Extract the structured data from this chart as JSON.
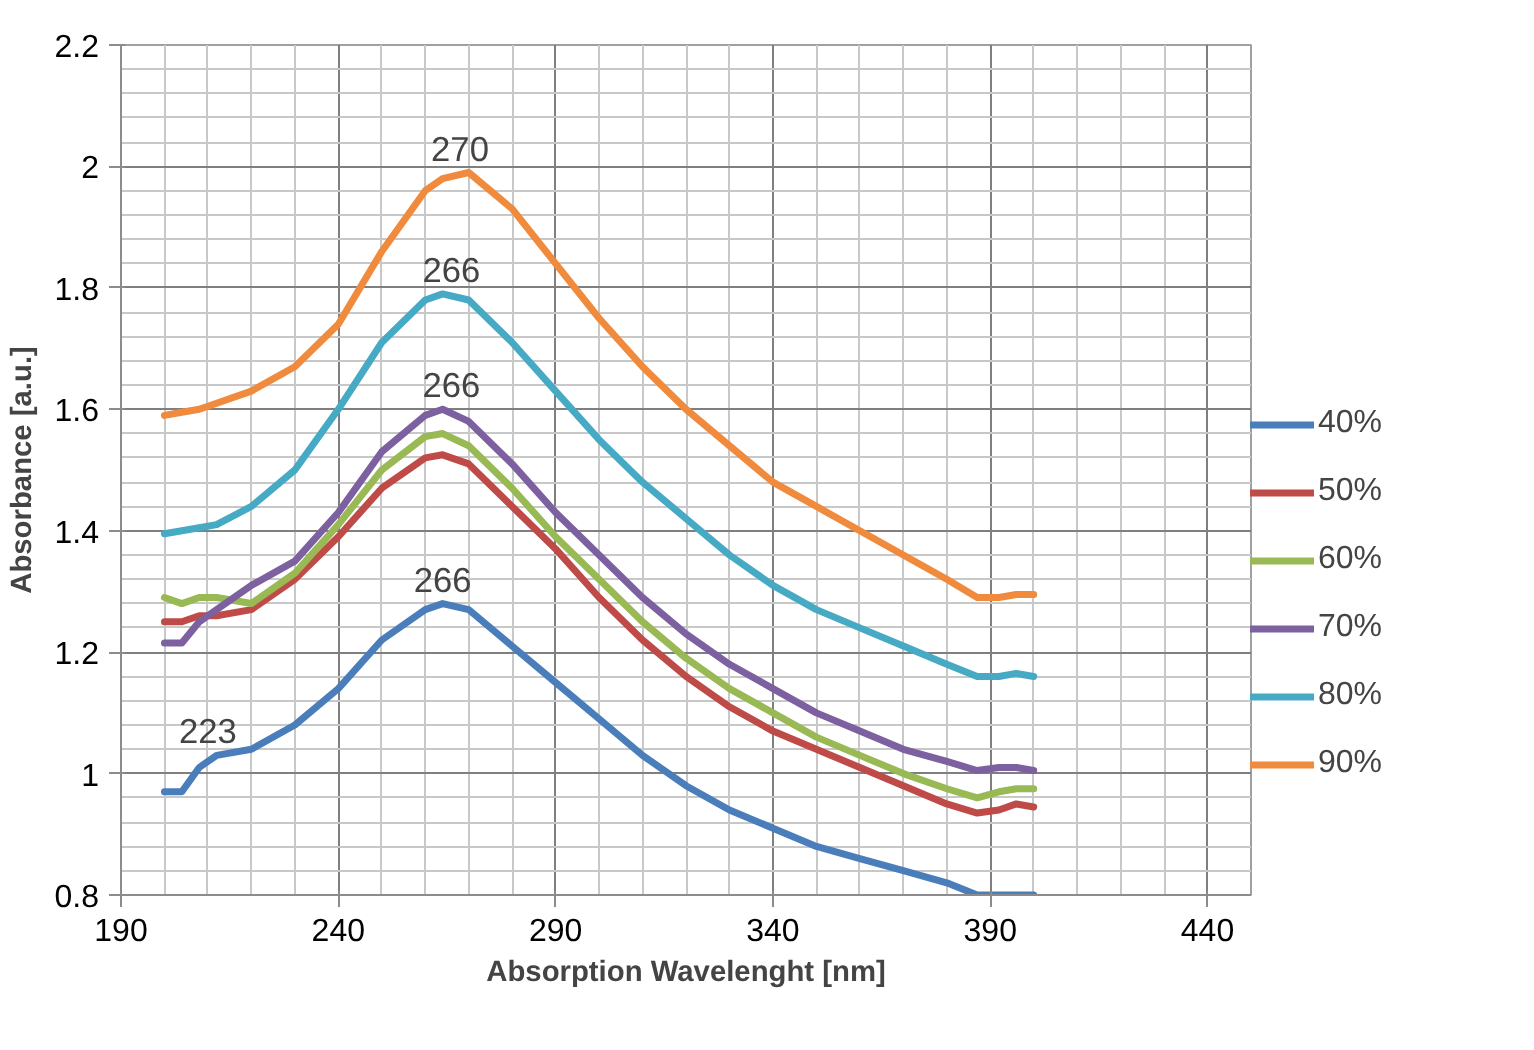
{
  "chart_data": {
    "type": "line",
    "xlabel": "Absorption Wavelenght [nm]",
    "ylabel": "Absorbance [a.u.]",
    "xlim": [
      190,
      450
    ],
    "xticks": [
      190,
      240,
      290,
      340,
      390,
      440
    ],
    "ylim": [
      0.8,
      2.2
    ],
    "yticks": [
      0.8,
      1,
      1.2,
      1.4,
      1.6,
      1.8,
      2,
      2.2
    ],
    "grid": true,
    "legend": "right",
    "marker": "none",
    "line_style": "solid",
    "x": [
      200,
      204,
      208,
      212,
      220,
      230,
      240,
      250,
      260,
      264,
      270,
      280,
      290,
      300,
      310,
      320,
      330,
      340,
      350,
      360,
      370,
      380,
      387,
      392,
      396,
      400
    ],
    "series": [
      {
        "name": "40%",
        "color": "#4a7ebb",
        "values": [
          0.97,
          0.97,
          1.01,
          1.03,
          1.04,
          1.08,
          1.14,
          1.22,
          1.27,
          1.28,
          1.27,
          1.21,
          1.15,
          1.09,
          1.03,
          0.98,
          0.94,
          0.91,
          0.88,
          0.86,
          0.84,
          0.82,
          0.8,
          0.8,
          0.8,
          0.8
        ]
      },
      {
        "name": "50%",
        "color": "#be4b48",
        "values": [
          1.25,
          1.25,
          1.26,
          1.26,
          1.27,
          1.32,
          1.39,
          1.47,
          1.52,
          1.525,
          1.51,
          1.44,
          1.37,
          1.29,
          1.22,
          1.16,
          1.11,
          1.07,
          1.04,
          1.01,
          0.98,
          0.95,
          0.935,
          0.94,
          0.95,
          0.945
        ]
      },
      {
        "name": "60%",
        "color": "#98b954",
        "values": [
          1.29,
          1.28,
          1.29,
          1.29,
          1.28,
          1.33,
          1.41,
          1.5,
          1.555,
          1.56,
          1.54,
          1.47,
          1.39,
          1.32,
          1.25,
          1.19,
          1.14,
          1.1,
          1.06,
          1.03,
          1.0,
          0.975,
          0.96,
          0.97,
          0.975,
          0.975
        ]
      },
      {
        "name": "70%",
        "color": "#7d60a0",
        "values": [
          1.215,
          1.215,
          1.25,
          1.27,
          1.31,
          1.35,
          1.43,
          1.53,
          1.59,
          1.6,
          1.58,
          1.51,
          1.43,
          1.36,
          1.29,
          1.23,
          1.18,
          1.14,
          1.1,
          1.07,
          1.04,
          1.02,
          1.005,
          1.01,
          1.01,
          1.005
        ]
      },
      {
        "name": "80%",
        "color": "#46aac5",
        "values": [
          1.395,
          1.4,
          1.405,
          1.41,
          1.44,
          1.5,
          1.6,
          1.71,
          1.78,
          1.79,
          1.78,
          1.71,
          1.63,
          1.55,
          1.48,
          1.42,
          1.36,
          1.31,
          1.27,
          1.24,
          1.21,
          1.18,
          1.16,
          1.16,
          1.165,
          1.16
        ]
      },
      {
        "name": "90%",
        "color": "#f08a3c",
        "values": [
          1.59,
          1.595,
          1.6,
          1.61,
          1.63,
          1.67,
          1.74,
          1.86,
          1.96,
          1.98,
          1.99,
          1.93,
          1.84,
          1.75,
          1.67,
          1.6,
          1.54,
          1.48,
          1.44,
          1.4,
          1.36,
          1.32,
          1.29,
          1.29,
          1.295,
          1.295
        ]
      }
    ],
    "annotations": [
      {
        "text": "270",
        "x": 268,
        "y": 1.99
      },
      {
        "text": "266",
        "x": 266,
        "y": 1.79
      },
      {
        "text": "266",
        "x": 266,
        "y": 1.6
      },
      {
        "text": "266",
        "x": 264,
        "y": 1.28
      },
      {
        "text": "223",
        "x": 210,
        "y": 1.03
      }
    ]
  }
}
